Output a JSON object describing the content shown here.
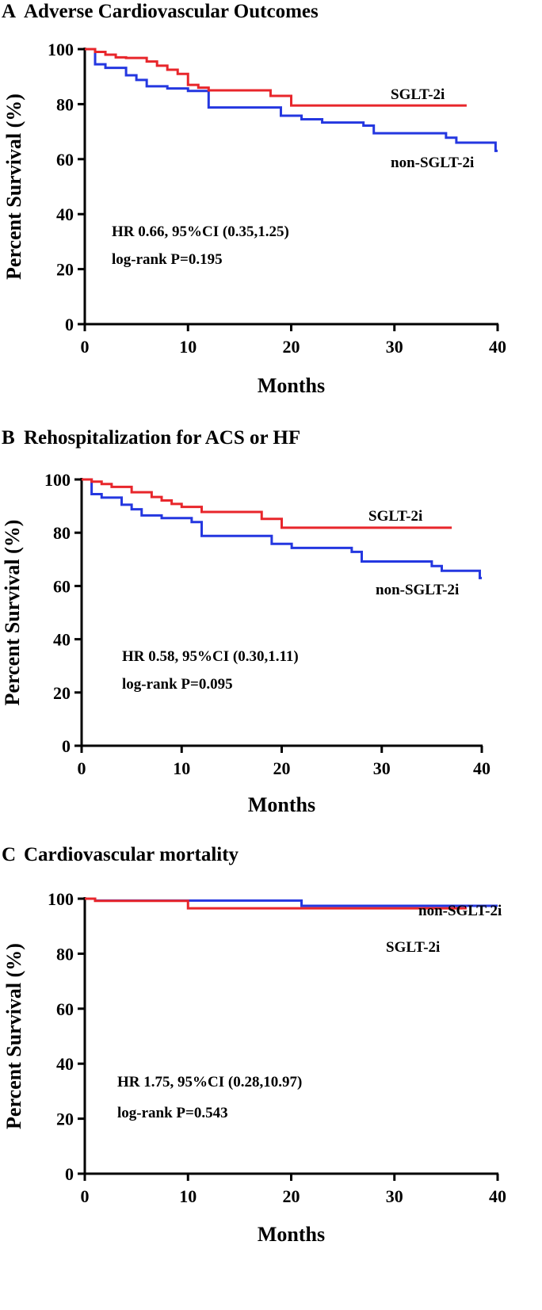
{
  "chart_data": [
    {
      "type": "line",
      "panel": "A",
      "title": "Adverse Cardiovascular Outcomes",
      "xlabel": "Months",
      "ylabel": "Percent Survival (%)",
      "xlim": [
        0,
        40
      ],
      "ylim": [
        0,
        100
      ],
      "xticks": [
        0,
        10,
        20,
        30,
        40
      ],
      "yticks": [
        0,
        20,
        40,
        60,
        80,
        100
      ],
      "grid": false,
      "step": true,
      "series": [
        {
          "name": "SGLT-2i",
          "color": "#e8262b",
          "x": [
            0,
            1,
            2,
            3,
            4,
            6,
            7,
            8,
            9,
            10,
            11,
            12,
            18,
            20,
            37
          ],
          "y": [
            100,
            99,
            98,
            97,
            96.8,
            95.5,
            94,
            92.5,
            91,
            87,
            86,
            85,
            83,
            79.5,
            79.5
          ]
        },
        {
          "name": "non-SGLT-2i",
          "color": "#2437e0",
          "x": [
            0,
            1,
            2,
            4,
            5,
            6,
            8,
            10,
            12,
            19,
            21,
            23,
            27,
            28,
            35,
            36,
            39.8,
            40
          ],
          "y": [
            100,
            94.5,
            93.2,
            90.5,
            88.8,
            86.5,
            85.7,
            84.8,
            78.8,
            75.8,
            74.5,
            73.3,
            72.2,
            69.4,
            67.8,
            66,
            63,
            63
          ]
        }
      ],
      "annotations": [
        "HR 0.66, 95%CI (0.35,1.25)",
        "log-rank P=0.195"
      ]
    },
    {
      "type": "line",
      "panel": "B",
      "title": "Rehospitalization for ACS or HF",
      "xlabel": "Months",
      "ylabel": "Percent Survival (%)",
      "xlim": [
        0,
        40
      ],
      "ylim": [
        0,
        100
      ],
      "xticks": [
        0,
        10,
        20,
        30,
        40
      ],
      "yticks": [
        0,
        20,
        40,
        60,
        80,
        100
      ],
      "grid": false,
      "step": true,
      "series": [
        {
          "name": "SGLT-2i",
          "color": "#e8262b",
          "x": [
            0,
            1,
            2,
            3,
            5,
            7,
            8,
            9,
            10,
            12,
            18,
            20,
            37
          ],
          "y": [
            100,
            99.2,
            98.3,
            97.2,
            95.2,
            93.4,
            92.1,
            90.8,
            89.7,
            87.8,
            85.2,
            81.9,
            81.9
          ]
        },
        {
          "name": "non-SGLT-2i",
          "color": "#2437e0",
          "x": [
            0,
            1,
            2,
            4,
            5,
            6,
            8,
            11,
            12,
            19,
            21,
            27,
            28,
            35,
            36,
            39.8,
            40
          ],
          "y": [
            100,
            94.5,
            93.2,
            90.5,
            88.8,
            86.5,
            85.5,
            84,
            78.8,
            75.8,
            74.3,
            72.8,
            69.2,
            67.5,
            65.7,
            63,
            63
          ]
        }
      ],
      "annotations": [
        "HR 0.58, 95%CI (0.30,1.11)",
        "log-rank P=0.095"
      ]
    },
    {
      "type": "line",
      "panel": "C",
      "title": "Cardiovascular mortality",
      "xlabel": "Months",
      "ylabel": "Percent Survival (%)",
      "xlim": [
        0,
        40
      ],
      "ylim": [
        0,
        100
      ],
      "xticks": [
        0,
        10,
        20,
        30,
        40
      ],
      "yticks": [
        0,
        20,
        40,
        60,
        80,
        100
      ],
      "grid": false,
      "step": true,
      "series": [
        {
          "name": "SGLT-2i",
          "color": "#e8262b",
          "x": [
            0,
            1,
            10,
            37
          ],
          "y": [
            100,
            99.2,
            96.5,
            96.5
          ]
        },
        {
          "name": "non-SGLT-2i",
          "color": "#2437e0",
          "x": [
            0,
            1,
            21,
            40
          ],
          "y": [
            100,
            99.3,
            97.4,
            97.4
          ]
        }
      ],
      "annotations": [
        "HR 1.75, 95%CI (0.28,10.97)",
        "log-rank P=0.543"
      ]
    }
  ]
}
